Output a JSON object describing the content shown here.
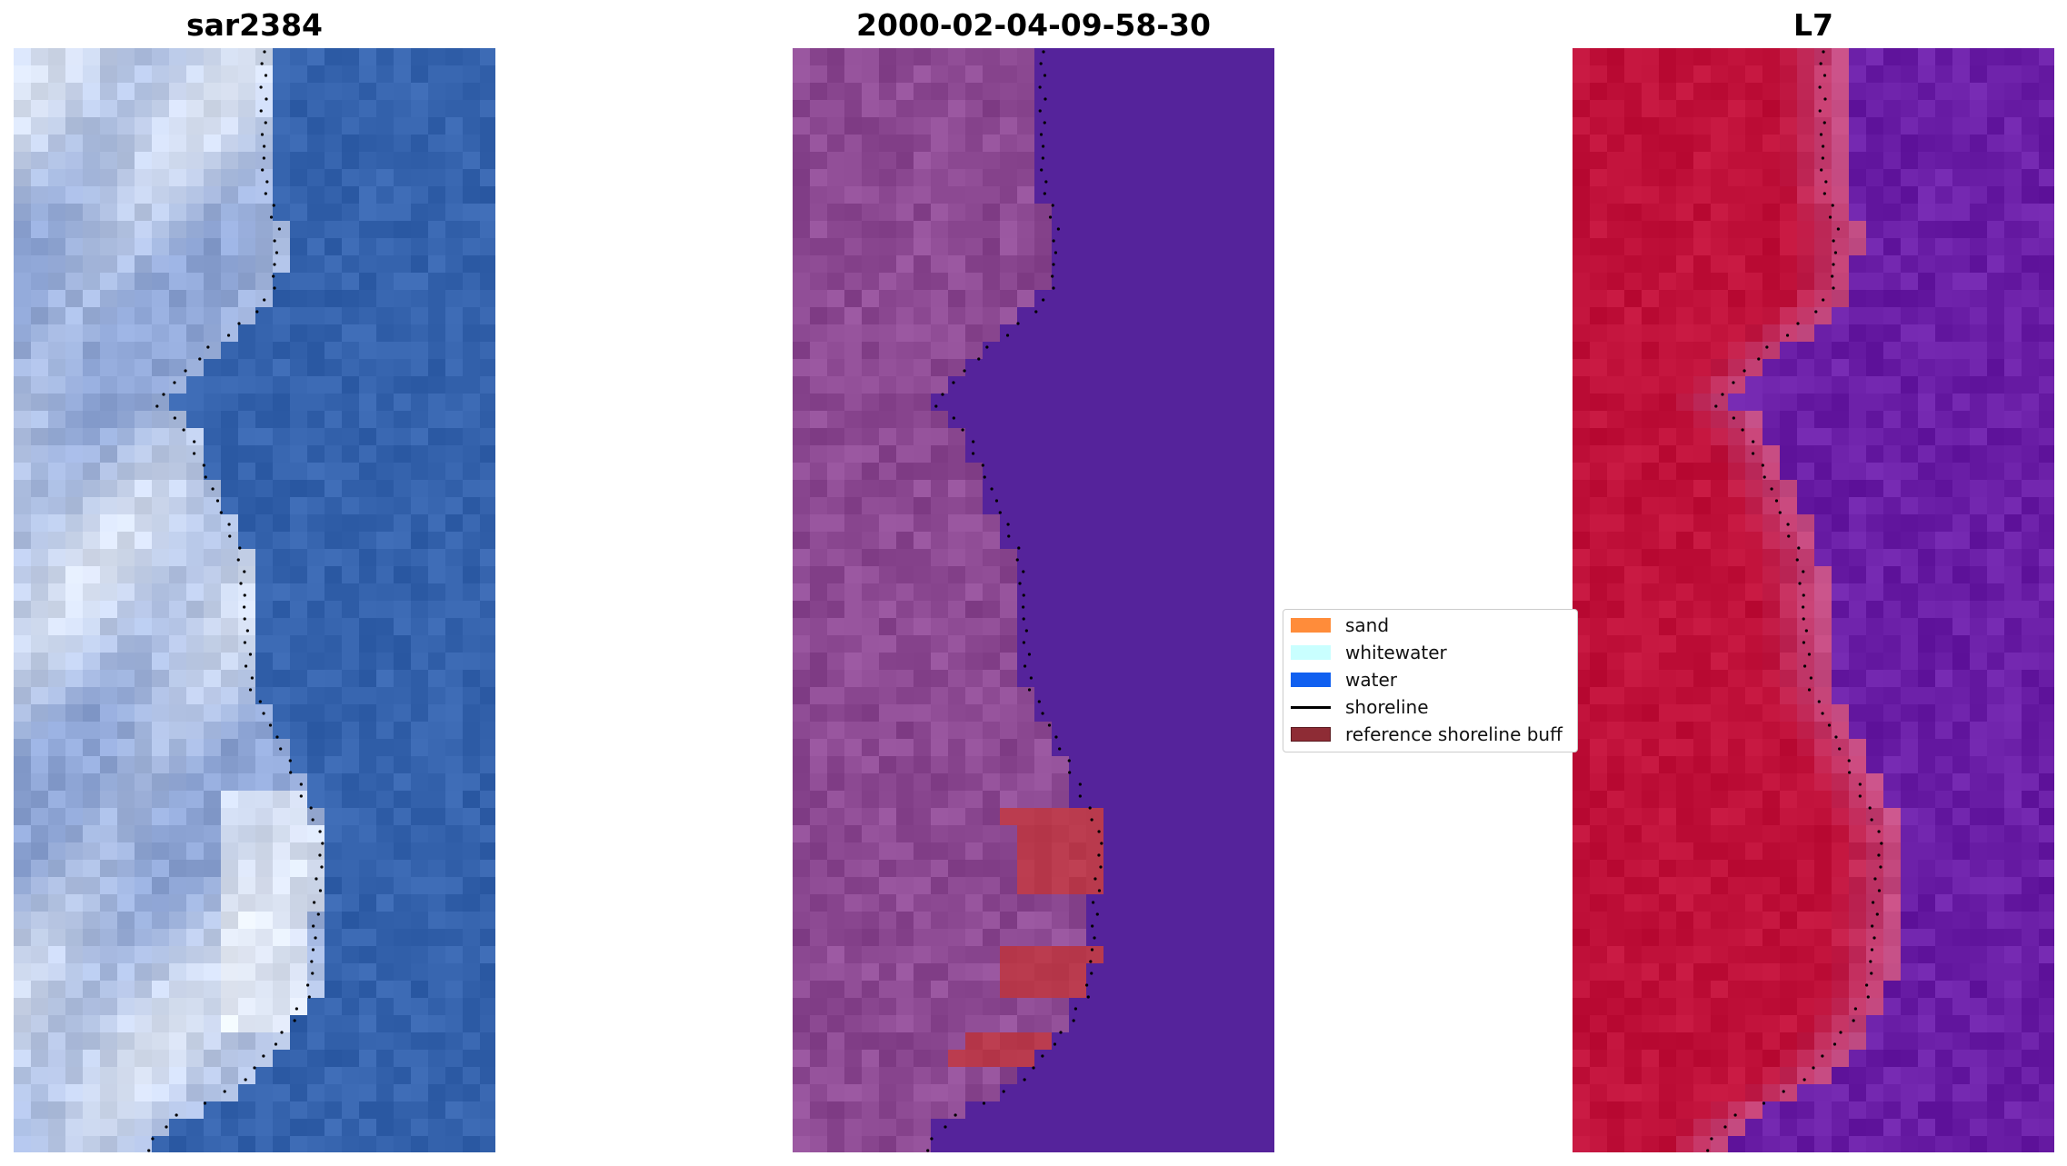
{
  "panels": [
    {
      "title": "sar2384"
    },
    {
      "title": "2000-02-04-09-58-30"
    },
    {
      "title": "L7"
    }
  ],
  "legend": {
    "items": [
      {
        "label": "sand",
        "color": "#ff8c3a",
        "kind": "patch"
      },
      {
        "label": "whitewater",
        "color": "#c9ffff",
        "kind": "patch"
      },
      {
        "label": "water",
        "color": "#1060f0",
        "kind": "patch"
      },
      {
        "label": "shoreline",
        "color": "#000000",
        "kind": "line"
      },
      {
        "label": "reference shoreline buff",
        "color": "#8e2c35",
        "kind": "patch"
      }
    ]
  },
  "colors": {
    "rgb_water": "#3563ad",
    "rgb_land": "#8fa6d6",
    "rgb_bright": "#eef3fb",
    "class_background": "#55239b",
    "class_land": "#8d4a93",
    "class_buffer": "#b93a4d",
    "ir_land": "#c0113a",
    "ir_edge": "#c45088",
    "ir_water": "#6a1ea6"
  }
}
